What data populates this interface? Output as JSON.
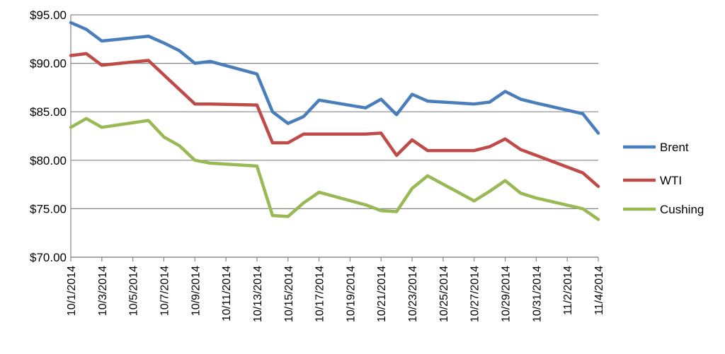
{
  "chart_data": {
    "type": "line",
    "y_tick_labels": [
      "$70.00",
      "$75.00",
      "$80.00",
      "$85.00",
      "$90.00",
      "$95.00"
    ],
    "y_ticks": [
      70,
      75,
      80,
      85,
      90,
      95
    ],
    "ylim": [
      70,
      95
    ],
    "x_tick_labels": [
      "10/1/2014",
      "10/3/2014",
      "10/5/2014",
      "10/7/2014",
      "10/9/2014",
      "10/11/2014",
      "10/13/2014",
      "10/15/2014",
      "10/17/2014",
      "10/19/2014",
      "10/21/2014",
      "10/23/2014",
      "10/25/2014",
      "10/27/2014",
      "10/29/2014",
      "10/31/2014",
      "11/2/2014",
      "11/4/2014"
    ],
    "xlim": [
      "10/1/2014",
      "11/4/2014"
    ],
    "grid": "horizontal",
    "legend_position": "right",
    "x": [
      "10/1/2014",
      "10/2/2014",
      "10/3/2014",
      "10/6/2014",
      "10/7/2014",
      "10/8/2014",
      "10/9/2014",
      "10/10/2014",
      "10/13/2014",
      "10/14/2014",
      "10/15/2014",
      "10/16/2014",
      "10/17/2014",
      "10/20/2014",
      "10/21/2014",
      "10/22/2014",
      "10/23/2014",
      "10/24/2014",
      "10/27/2014",
      "10/28/2014",
      "10/29/2014",
      "10/30/2014",
      "10/31/2014",
      "11/3/2014",
      "11/4/2014"
    ],
    "series": [
      {
        "name": "Brent",
        "color": "#4a7ebb",
        "values": [
          94.2,
          93.5,
          92.3,
          92.8,
          92.1,
          91.3,
          90.0,
          90.2,
          88.9,
          85.0,
          83.8,
          84.5,
          86.2,
          85.4,
          86.3,
          84.7,
          86.8,
          86.1,
          85.8,
          86.0,
          87.1,
          86.3,
          85.9,
          84.8,
          82.8
        ]
      },
      {
        "name": "WTI",
        "color": "#be4b48",
        "values": [
          90.8,
          91.0,
          89.8,
          90.3,
          88.8,
          87.3,
          85.8,
          85.8,
          85.7,
          81.8,
          81.8,
          82.7,
          82.7,
          82.7,
          82.8,
          80.5,
          82.1,
          81.0,
          81.0,
          81.4,
          82.2,
          81.1,
          80.5,
          78.7,
          77.3
        ]
      },
      {
        "name": "Cushing",
        "color": "#98b954",
        "values": [
          83.4,
          84.3,
          83.4,
          84.1,
          82.4,
          81.5,
          80.0,
          79.7,
          79.4,
          74.3,
          74.2,
          75.6,
          76.7,
          75.4,
          74.8,
          74.7,
          77.1,
          78.4,
          75.8,
          76.8,
          77.9,
          76.6,
          76.1,
          75.0,
          73.9
        ]
      }
    ]
  }
}
